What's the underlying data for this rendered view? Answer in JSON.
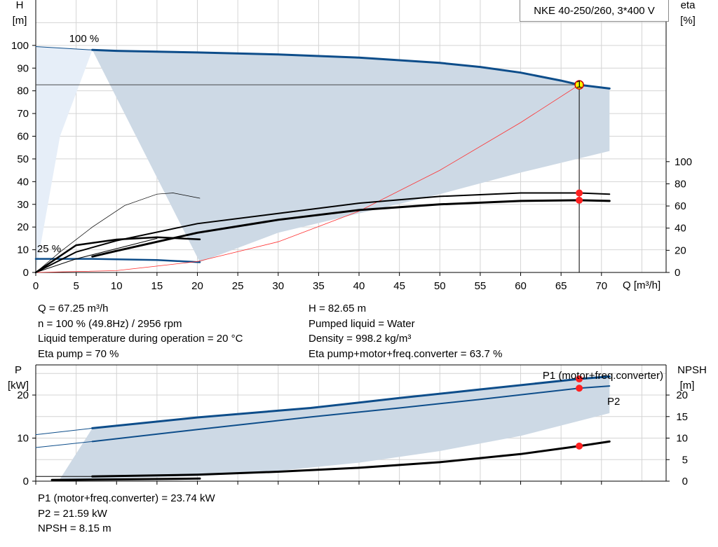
{
  "header": {
    "title": "NKE 40-250/260, 3*400 V"
  },
  "chart_data": [
    {
      "type": "line",
      "title": "NKE 40-250/260, 3*400 V",
      "xlabel": "Q [m³/h]",
      "ylabel": "H [m]",
      "ylabel_top": "H",
      "ylabel_unit": "[m]",
      "y2label_top": "eta",
      "y2label_unit": "[%]",
      "xlim": [
        0,
        78
      ],
      "ylim": [
        0,
        120
      ],
      "y2lim": [
        0,
        100
      ],
      "xticks": [
        0,
        5,
        10,
        15,
        20,
        25,
        30,
        35,
        40,
        45,
        50,
        55,
        60,
        65,
        70
      ],
      "yticks": [
        0,
        10,
        20,
        30,
        40,
        50,
        60,
        70,
        80,
        90,
        100
      ],
      "y2ticks": [
        0,
        20,
        40,
        60,
        80,
        100
      ],
      "grid": true,
      "annotations": [
        "100 %",
        "25 %"
      ],
      "operating_area_upper": [
        [
          7,
          98
        ],
        [
          20,
          96.9
        ],
        [
          30,
          96
        ],
        [
          40,
          94.6
        ],
        [
          50,
          92.3
        ],
        [
          60,
          88
        ],
        [
          65,
          84.5
        ],
        [
          67.25,
          82.65
        ],
        [
          71,
          81
        ]
      ],
      "operating_area_lower": [
        [
          71,
          53.5
        ],
        [
          67,
          50
        ],
        [
          60,
          44
        ],
        [
          50,
          34.5
        ],
        [
          40,
          26
        ],
        [
          30,
          17.5
        ],
        [
          20.3,
          4.5
        ]
      ],
      "full_speed_region_curve": [
        [
          0,
          99.5
        ],
        [
          7,
          98
        ],
        [
          3,
          60
        ],
        [
          0,
          0
        ]
      ],
      "series": [
        {
          "values": [
            [
              7,
              98
            ],
            [
              10,
              97.6
            ],
            [
              20,
              96.9
            ],
            [
              30,
              96
            ],
            [
              40,
              94.6
            ],
            [
              50,
              92.3
            ],
            [
              55,
              90.5
            ],
            [
              60,
              88
            ],
            [
              65,
              84.5
            ],
            [
              67.25,
              82.65
            ],
            [
              71,
              81
            ]
          ]
        },
        {
          "values": [
            [
              0,
              99.5
            ],
            [
              7,
              98
            ]
          ]
        },
        {
          "values": [
            [
              0,
              6
            ],
            [
              7,
              6
            ],
            [
              15,
              5.5
            ],
            [
              20.3,
              4.5
            ]
          ]
        },
        {
          "values": [
            [
              0,
              0
            ],
            [
              10,
              0.8
            ],
            [
              20,
              4.8
            ],
            [
              30,
              13.5
            ],
            [
              40,
              27
            ],
            [
              50,
              45
            ],
            [
              60,
              66
            ],
            [
              67.25,
              82.65
            ]
          ]
        },
        {
          "values": [
            [
              0,
              0
            ],
            [
              5,
              9
            ],
            [
              10,
              14
            ],
            [
              20,
              21.5
            ],
            [
              30,
              26
            ],
            [
              40,
              30.5
            ],
            [
              50,
              33.5
            ],
            [
              60,
              35
            ],
            [
              67.25,
              35
            ],
            [
              71,
              34.5
            ]
          ]
        },
        {
          "values": [
            [
              7,
              7
            ],
            [
              10,
              9.5
            ],
            [
              20,
              17.5
            ],
            [
              30,
              23.2
            ],
            [
              40,
              27.5
            ],
            [
              50,
              30
            ],
            [
              60,
              31.5
            ],
            [
              67.25,
              31.8
            ],
            [
              71,
              31.5
            ]
          ]
        },
        {
          "values": [
            [
              0,
              0
            ],
            [
              5,
              12
            ],
            [
              10,
              14.5
            ],
            [
              15,
              15.5
            ],
            [
              20.3,
              14.6
            ]
          ]
        },
        {
          "values": [
            [
              0,
              0
            ],
            [
              5,
              6
            ],
            [
              10,
              10.5
            ],
            [
              15,
              15
            ]
          ]
        },
        {
          "values": [
            [
              0,
              0
            ],
            [
              3,
              9
            ],
            [
              7,
              20
            ],
            [
              11,
              29.5
            ],
            [
              15,
              34.5
            ],
            [
              17,
              35
            ],
            [
              20.3,
              32.7
            ]
          ]
        }
      ],
      "operating_point": {
        "x": 67.25,
        "y": 82.65
      },
      "eta_points": [
        {
          "x": 67.25,
          "y": 35
        },
        {
          "x": 67.25,
          "y": 31.8
        }
      ]
    },
    {
      "type": "line",
      "xlabel": "",
      "ylabel": "P [kW]",
      "ylabel_top": "P",
      "ylabel_unit": "[kW]",
      "y2label_top": "NPSH",
      "y2label_unit": "[m]",
      "xlim": [
        0,
        78
      ],
      "ylim": [
        0,
        27
      ],
      "y2lim": [
        0,
        27
      ],
      "xticks": [
        0,
        5,
        10,
        15,
        20,
        25,
        30,
        35,
        40,
        45,
        50,
        55,
        60,
        65,
        70
      ],
      "yticks": [
        0,
        10,
        20
      ],
      "y2ticks": [
        0,
        5,
        10,
        15,
        20
      ],
      "grid": true,
      "area_upper": [
        [
          7,
          12.3
        ],
        [
          20,
          14.8
        ],
        [
          34,
          17
        ],
        [
          45,
          19.3
        ],
        [
          55,
          21.3
        ],
        [
          67.25,
          23.74
        ],
        [
          71,
          24.3
        ]
      ],
      "area_lower": [
        [
          71,
          15.8
        ],
        [
          60,
          10.5
        ],
        [
          50,
          7
        ],
        [
          40,
          4.3
        ],
        [
          30,
          2.4
        ],
        [
          20,
          1.2
        ],
        [
          7,
          0.5
        ],
        [
          3,
          0.5
        ]
      ],
      "series": [
        {
          "name": "P1 (motor+freq.converter)",
          "values": [
            [
              7,
              12.3
            ],
            [
              20,
              14.8
            ],
            [
              34,
              17
            ],
            [
              45,
              19.3
            ],
            [
              55,
              21.3
            ],
            [
              67.25,
              23.74
            ],
            [
              71,
              24.3
            ]
          ]
        },
        {
          "values": [
            [
              0,
              10.8
            ],
            [
              7,
              12.3
            ]
          ]
        },
        {
          "name": "P2",
          "values": [
            [
              7,
              9.2
            ],
            [
              20,
              12
            ],
            [
              34,
              14.9
            ],
            [
              45,
              17
            ],
            [
              55,
              19
            ],
            [
              67.25,
              21.59
            ],
            [
              71,
              22.1
            ]
          ]
        },
        {
          "values": [
            [
              0,
              7.8
            ],
            [
              7,
              9.2
            ]
          ]
        },
        {
          "values": [
            [
              7,
              1.1
            ],
            [
              20,
              1.5
            ],
            [
              30,
              2.2
            ],
            [
              40,
              3.1
            ],
            [
              50,
              4.4
            ],
            [
              60,
              6.3
            ],
            [
              67.25,
              8.15
            ],
            [
              71,
              9.2
            ]
          ]
        },
        {
          "values": [
            [
              0,
              1.1
            ],
            [
              7,
              1.1
            ]
          ]
        },
        {
          "values": [
            [
              2,
              0.3
            ],
            [
              10,
              0.4
            ],
            [
              20.3,
              0.6
            ]
          ]
        }
      ],
      "points": [
        {
          "x": 67.25,
          "y": 23.74
        },
        {
          "x": 67.25,
          "y": 21.59
        },
        {
          "x": 67.25,
          "y": 8.15
        }
      ]
    }
  ],
  "info": {
    "left": [
      "Q = 67.25 m³/h",
      "n = 100 % (49.8Hz) / 2956 rpm",
      "Liquid temperature during operation = 20 °C",
      "Eta pump = 70 %"
    ],
    "right": [
      "H = 82.65 m",
      "Pumped liquid = Water",
      "Density = 998.2 kg/m³",
      "Eta pump+motor+freq.converter = 63.7 %"
    ],
    "bottom": [
      "P1 (motor+freq.converter) = 23.74 kW",
      "P2 = 21.59 kW",
      "NPSH = 8.15 m"
    ]
  },
  "colors": {
    "curve_blue": "#0d4d8a",
    "area": "#cdd9e5",
    "light_area": "#e6eef8",
    "grid": "#d4d4d4",
    "point_red": "#ff2020",
    "system_red": "#ff3030"
  }
}
